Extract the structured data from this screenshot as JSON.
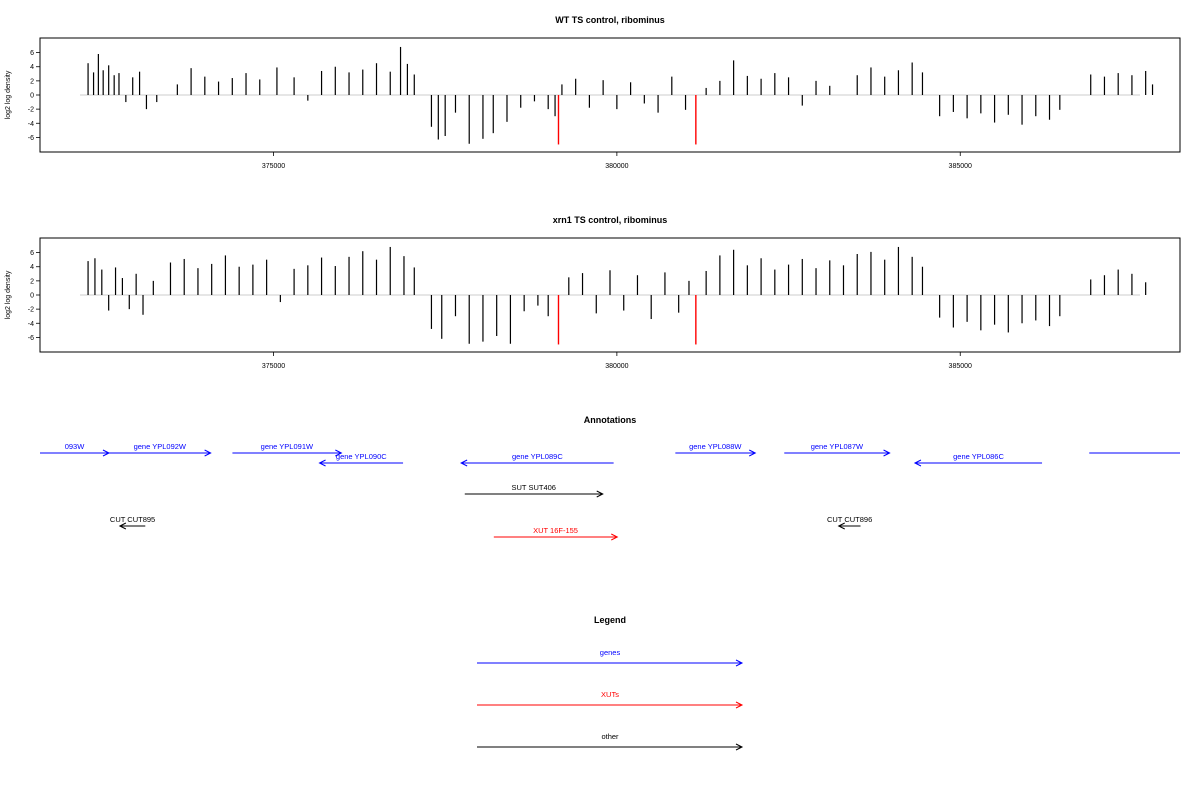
{
  "chart_data": [
    {
      "type": "bar",
      "title": "WT TS control, ribominus",
      "xlabel": "",
      "ylabel": "log2 log density",
      "xlim": [
        371600,
        388200
      ],
      "ylim": [
        -7.5,
        7.5
      ],
      "xticks": [
        375000,
        380000,
        385000
      ],
      "yticks": [
        6,
        4,
        2,
        0,
        -2,
        -4,
        -6
      ],
      "grid": false,
      "colors": {
        "bars": "#000000",
        "highlight": "#ff0000",
        "baseline": "#bbbbbb"
      },
      "series": [
        {
          "values": [
            [
              372300,
              4.5
            ],
            [
              372380,
              3.2
            ],
            [
              372450,
              5.8
            ],
            [
              372520,
              3.5
            ],
            [
              372600,
              4.2
            ],
            [
              372680,
              2.8
            ],
            [
              372750,
              3.1
            ],
            [
              372850,
              -1.0
            ],
            [
              372950,
              2.5
            ],
            [
              373050,
              3.3
            ],
            [
              373150,
              -2.0
            ],
            [
              373300,
              -1.0
            ],
            [
              373600,
              1.5
            ],
            [
              373800,
              3.8
            ],
            [
              374000,
              2.6
            ],
            [
              374200,
              1.9
            ],
            [
              374400,
              2.4
            ],
            [
              374600,
              3.1
            ],
            [
              374800,
              2.2
            ],
            [
              375050,
              3.9
            ],
            [
              375300,
              2.5
            ],
            [
              375500,
              -0.8
            ],
            [
              375700,
              3.4
            ],
            [
              375900,
              4.0
            ],
            [
              376100,
              3.2
            ],
            [
              376300,
              3.6
            ],
            [
              376500,
              4.5
            ],
            [
              376700,
              3.3
            ],
            [
              376850,
              6.8
            ],
            [
              376950,
              4.4
            ],
            [
              377050,
              2.9
            ],
            [
              377300,
              -4.5
            ],
            [
              377400,
              -6.3
            ],
            [
              377500,
              -5.8
            ],
            [
              377650,
              -2.5
            ],
            [
              377850,
              -6.9
            ],
            [
              378050,
              -6.2
            ],
            [
              378200,
              -5.4
            ],
            [
              378400,
              -3.8
            ],
            [
              378600,
              -1.8
            ],
            [
              378800,
              -0.9
            ],
            [
              379000,
              -2.0
            ],
            [
              379100,
              -3.0
            ],
            [
              379200,
              1.5
            ],
            [
              379400,
              2.3
            ],
            [
              379600,
              -1.8
            ],
            [
              379800,
              2.1
            ],
            [
              380000,
              -2.0
            ],
            [
              380200,
              1.8
            ],
            [
              380400,
              -1.2
            ],
            [
              380600,
              -2.5
            ],
            [
              380800,
              2.6
            ],
            [
              381000,
              -2.1
            ],
            [
              381300,
              1.0
            ],
            [
              381500,
              2.0
            ],
            [
              381700,
              4.9
            ],
            [
              381900,
              2.7
            ],
            [
              382100,
              2.3
            ],
            [
              382300,
              3.1
            ],
            [
              382500,
              2.5
            ],
            [
              382700,
              -1.5
            ],
            [
              382900,
              2.0
            ],
            [
              383100,
              1.3
            ],
            [
              383500,
              2.8
            ],
            [
              383700,
              3.9
            ],
            [
              383900,
              2.6
            ],
            [
              384100,
              3.5
            ],
            [
              384300,
              4.6
            ],
            [
              384450,
              3.2
            ],
            [
              384700,
              -3.0
            ],
            [
              384900,
              -2.4
            ],
            [
              385100,
              -3.3
            ],
            [
              385300,
              -2.6
            ],
            [
              385500,
              -3.9
            ],
            [
              385700,
              -2.8
            ],
            [
              385900,
              -4.2
            ],
            [
              386100,
              -3.0
            ],
            [
              386300,
              -3.5
            ],
            [
              386450,
              -2.1
            ],
            [
              386900,
              2.9
            ],
            [
              387100,
              2.6
            ],
            [
              387300,
              3.1
            ],
            [
              387500,
              2.8
            ],
            [
              387700,
              3.4
            ],
            [
              387800,
              1.5
            ]
          ]
        },
        {
          "name": "",
          "values": [
            [
              379150,
              -7.0
            ],
            [
              381150,
              -7.0
            ]
          ]
        }
      ]
    },
    {
      "type": "bar",
      "title": "xrn1 TS control, ribominus",
      "xlabel": "",
      "ylabel": "log2 log density",
      "xlim": [
        371600,
        388200
      ],
      "ylim": [
        -7.5,
        7.5
      ],
      "xticks": [
        375000,
        380000,
        385000
      ],
      "yticks": [
        6,
        4,
        2,
        0,
        -2,
        -4,
        -6
      ],
      "grid": false,
      "colors": {
        "bars": "#000000",
        "highlight": "#ff0000",
        "baseline": "#bbbbbb"
      },
      "series": [
        {
          "values": [
            [
              372300,
              4.8
            ],
            [
              372400,
              5.2
            ],
            [
              372500,
              3.6
            ],
            [
              372600,
              -2.2
            ],
            [
              372700,
              3.9
            ],
            [
              372800,
              2.4
            ],
            [
              372900,
              -2.0
            ],
            [
              373000,
              3.0
            ],
            [
              373100,
              -2.8
            ],
            [
              373250,
              2.0
            ],
            [
              373500,
              4.6
            ],
            [
              373700,
              5.1
            ],
            [
              373900,
              3.8
            ],
            [
              374100,
              4.4
            ],
            [
              374300,
              5.6
            ],
            [
              374500,
              4.0
            ],
            [
              374700,
              4.3
            ],
            [
              374900,
              5.0
            ],
            [
              375100,
              -1.0
            ],
            [
              375300,
              3.7
            ],
            [
              375500,
              4.2
            ],
            [
              375700,
              5.3
            ],
            [
              375900,
              4.1
            ],
            [
              376100,
              5.4
            ],
            [
              376300,
              6.2
            ],
            [
              376500,
              5.0
            ],
            [
              376700,
              6.8
            ],
            [
              376900,
              5.5
            ],
            [
              377050,
              3.9
            ],
            [
              377300,
              -4.8
            ],
            [
              377450,
              -6.2
            ],
            [
              377650,
              -3.0
            ],
            [
              377850,
              -6.9
            ],
            [
              378050,
              -6.6
            ],
            [
              378250,
              -5.8
            ],
            [
              378450,
              -6.9
            ],
            [
              378650,
              -2.3
            ],
            [
              378850,
              -1.5
            ],
            [
              379000,
              -3.0
            ],
            [
              379300,
              2.5
            ],
            [
              379500,
              3.1
            ],
            [
              379700,
              -2.6
            ],
            [
              379900,
              3.5
            ],
            [
              380100,
              -2.2
            ],
            [
              380300,
              2.8
            ],
            [
              380500,
              -3.4
            ],
            [
              380700,
              3.2
            ],
            [
              380900,
              -2.5
            ],
            [
              381050,
              2.0
            ],
            [
              381300,
              3.4
            ],
            [
              381500,
              5.6
            ],
            [
              381700,
              6.4
            ],
            [
              381900,
              4.2
            ],
            [
              382100,
              5.2
            ],
            [
              382300,
              3.6
            ],
            [
              382500,
              4.3
            ],
            [
              382700,
              5.1
            ],
            [
              382900,
              3.8
            ],
            [
              383100,
              4.9
            ],
            [
              383300,
              4.2
            ],
            [
              383500,
              5.8
            ],
            [
              383700,
              6.1
            ],
            [
              383900,
              5.0
            ],
            [
              384100,
              6.8
            ],
            [
              384300,
              5.4
            ],
            [
              384450,
              4.0
            ],
            [
              384700,
              -3.2
            ],
            [
              384900,
              -4.6
            ],
            [
              385100,
              -3.8
            ],
            [
              385300,
              -5.0
            ],
            [
              385500,
              -4.2
            ],
            [
              385700,
              -5.3
            ],
            [
              385900,
              -4.0
            ],
            [
              386100,
              -3.6
            ],
            [
              386300,
              -4.4
            ],
            [
              386450,
              -3.0
            ],
            [
              386900,
              2.2
            ],
            [
              387100,
              2.8
            ],
            [
              387300,
              3.6
            ],
            [
              387500,
              3.0
            ],
            [
              387700,
              1.8
            ]
          ]
        },
        {
          "name": "",
          "values": [
            [
              379150,
              -7.0
            ],
            [
              381150,
              -7.0
            ]
          ]
        }
      ]
    }
  ],
  "annotations": {
    "title": "Annotations",
    "items": [
      {
        "label": "093W",
        "color": "#0000ff",
        "direction": "right",
        "start": 371600,
        "end": 373500
      },
      {
        "label": "gene YPL092W",
        "color": "#0000ff",
        "direction": "right",
        "start": 373500,
        "end": 376300
      },
      {
        "label": "gene YPL091W",
        "color": "#0000ff",
        "direction": "right",
        "start": 376900,
        "end": 379900
      },
      {
        "label": "gene YPL090C",
        "color": "#0000ff",
        "direction": "left",
        "start": 379300,
        "end": 381600
      },
      {
        "label": "gene YPL089C",
        "color": "#0000ff",
        "direction": "left",
        "start": 383200,
        "end": 387400
      },
      {
        "label": "gene YPL088W",
        "color": "#0000ff",
        "direction": "right",
        "start": 389100,
        "end": 391300
      },
      {
        "label": "gene YPL087W",
        "color": "#0000ff",
        "direction": "right",
        "start": 392100,
        "end": 395000
      },
      {
        "label": "gene YPL086C",
        "color": "#0000ff",
        "direction": "left",
        "start": 395700,
        "end": 399200
      },
      {
        "label": "",
        "color": "#0000ff",
        "direction": "none",
        "start": 400500,
        "end": 403000
      },
      {
        "label": "SUT SUT406",
        "color": "#000000",
        "direction": "right",
        "start": 383300,
        "end": 387100
      },
      {
        "label": "CUT CUT895",
        "color": "#000000",
        "direction": "left",
        "start": 373800,
        "end": 374500
      },
      {
        "label": "CUT CUT896",
        "color": "#000000",
        "direction": "left",
        "start": 393600,
        "end": 394200
      },
      {
        "label": "XUT 16F-155",
        "color": "#ff0000",
        "direction": "right",
        "start": 384100,
        "end": 387500
      }
    ]
  },
  "legend": {
    "title": "Legend",
    "items": [
      {
        "label": "genes",
        "color": "#0000ff"
      },
      {
        "label": "XUTs",
        "color": "#ff0000"
      },
      {
        "label": "other",
        "color": "#000000"
      }
    ]
  }
}
